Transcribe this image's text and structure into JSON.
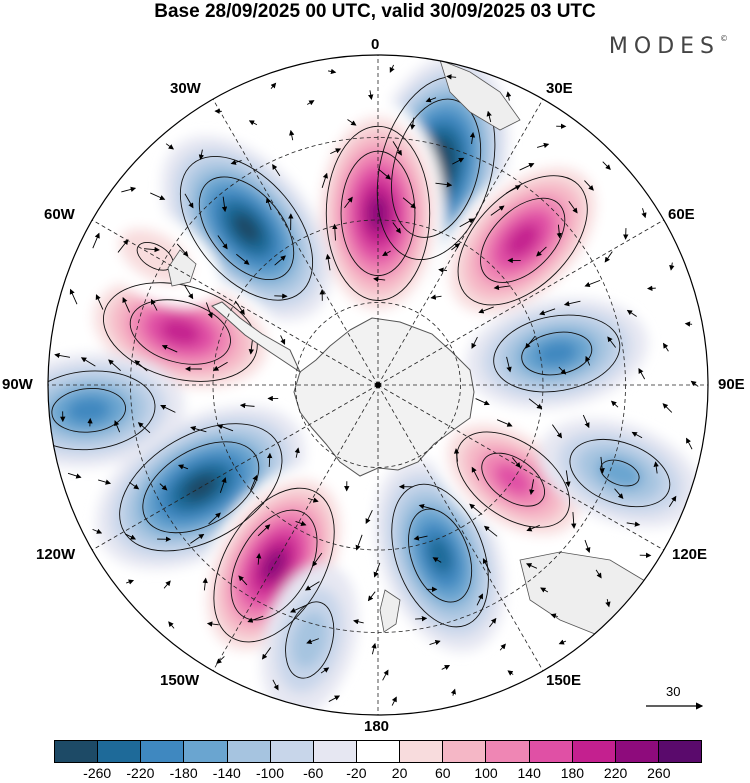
{
  "title": "Base 28/09/2025 00 UTC, valid 30/09/2025 03 UTC",
  "brand": "MODES",
  "brand_mark": "©",
  "longitude_labels": {
    "n0": "0",
    "e30": "30E",
    "e60": "60E",
    "e90": "90E",
    "e120": "120E",
    "e150": "150E",
    "s180": "180",
    "w150": "150W",
    "w120": "120W",
    "w90": "90W",
    "w60": "60W",
    "w30": "30W"
  },
  "reference_vector": {
    "label": "30"
  },
  "colorbar": {
    "colors": [
      "#1d4a66",
      "#1e6a99",
      "#3f88c0",
      "#6aa5d0",
      "#a6c4e0",
      "#c8d6ea",
      "#e6e7f2",
      "#ffffff",
      "#f8dcdd",
      "#f5b7c6",
      "#ef86b4",
      "#e050a5",
      "#c4208f",
      "#8e0b7c",
      "#5a0a6c"
    ],
    "labels": [
      "-260",
      "-220",
      "-180",
      "-140",
      "-100",
      "-60",
      "-20",
      "20",
      "60",
      "100",
      "140",
      "180",
      "220",
      "260"
    ]
  },
  "map_data": {
    "projection": "south-polar-stereographic",
    "field": "geopotential height anomaly with wind vectors",
    "anomaly_centers": [
      {
        "name": "blob-1",
        "lon": 15,
        "value": -280
      },
      {
        "name": "blob-2",
        "lon": 0,
        "value": 260
      },
      {
        "name": "blob-3",
        "lon": -40,
        "value": -240
      },
      {
        "name": "blob-4",
        "lon": 45,
        "value": 230
      },
      {
        "name": "blob-5",
        "lon": 80,
        "value": -160
      },
      {
        "name": "blob-6",
        "lon": -75,
        "value": 230
      },
      {
        "name": "blob-7",
        "lon": -95,
        "value": -180
      },
      {
        "name": "blob-8",
        "lon": -120,
        "value": -270
      },
      {
        "name": "blob-9",
        "lon": -150,
        "value": 240
      },
      {
        "name": "blob-10",
        "lon": 160,
        "value": -200
      },
      {
        "name": "blob-11",
        "lon": 125,
        "value": 160
      },
      {
        "name": "blob-12",
        "lon": 110,
        "value": -120
      },
      {
        "name": "blob-13",
        "lon": -165,
        "value": -90
      },
      {
        "name": "blob-14",
        "lon": -60,
        "value": 60
      }
    ]
  }
}
